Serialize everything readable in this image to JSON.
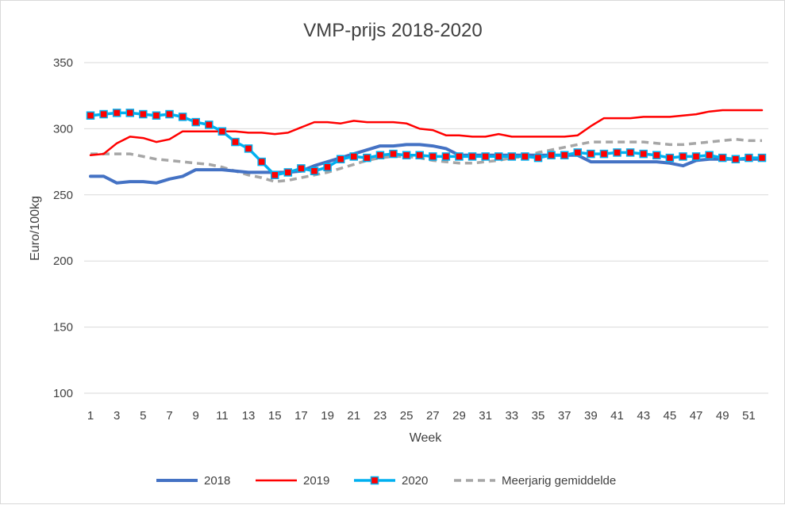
{
  "chart_data": {
    "type": "line",
    "title": "VMP-prijs 2018-2020",
    "xlabel": "Week",
    "ylabel": "Euro/100kg",
    "ylim": [
      100,
      350
    ],
    "yticks": [
      100,
      150,
      200,
      250,
      300,
      350
    ],
    "xticks": [
      1,
      3,
      5,
      7,
      9,
      11,
      13,
      15,
      17,
      19,
      21,
      23,
      25,
      27,
      29,
      31,
      33,
      35,
      37,
      39,
      41,
      43,
      45,
      47,
      49,
      51
    ],
    "xlim": [
      1,
      52
    ],
    "grid": true,
    "legend_position": "bottom",
    "series": [
      {
        "name": "2018",
        "color": "#4472c4",
        "style": "solid-thick",
        "x": [
          1,
          2,
          3,
          4,
          5,
          6,
          7,
          8,
          9,
          10,
          11,
          12,
          13,
          14,
          15,
          16,
          17,
          18,
          19,
          20,
          21,
          22,
          23,
          24,
          25,
          26,
          27,
          28,
          29,
          30,
          31,
          32,
          33,
          34,
          35,
          36,
          37,
          38,
          39,
          40,
          41,
          42,
          43,
          44,
          45,
          46,
          47,
          48,
          49,
          50,
          51,
          52
        ],
        "values": [
          264,
          264,
          259,
          260,
          260,
          259,
          262,
          264,
          269,
          269,
          269,
          268,
          267,
          267,
          267,
          267,
          268,
          272,
          275,
          278,
          281,
          284,
          287,
          287,
          288,
          288,
          287,
          285,
          280,
          280,
          280,
          280,
          280,
          280,
          280,
          280,
          280,
          280,
          275,
          275,
          275,
          275,
          275,
          275,
          274,
          272,
          276,
          277,
          277,
          277,
          277,
          277
        ]
      },
      {
        "name": "2019",
        "color": "#ff0000",
        "style": "solid",
        "x": [
          1,
          2,
          3,
          4,
          5,
          6,
          7,
          8,
          9,
          10,
          11,
          12,
          13,
          14,
          15,
          16,
          17,
          18,
          19,
          20,
          21,
          22,
          23,
          24,
          25,
          26,
          27,
          28,
          29,
          30,
          31,
          32,
          33,
          34,
          35,
          36,
          37,
          38,
          39,
          40,
          41,
          42,
          43,
          44,
          45,
          46,
          47,
          48,
          49,
          50,
          51,
          52
        ],
        "values": [
          280,
          281,
          289,
          294,
          293,
          290,
          292,
          298,
          298,
          298,
          298,
          298,
          297,
          297,
          296,
          297,
          301,
          305,
          305,
          304,
          306,
          305,
          305,
          305,
          304,
          300,
          299,
          295,
          295,
          294,
          294,
          296,
          294,
          294,
          294,
          294,
          294,
          295,
          302,
          308,
          308,
          308,
          309,
          309,
          309,
          310,
          311,
          313,
          314,
          314,
          314,
          314
        ]
      },
      {
        "name": "2020",
        "color": "#00b0f0",
        "marker_color": "#ff0000",
        "style": "solid-markers",
        "x": [
          1,
          2,
          3,
          4,
          5,
          6,
          7,
          8,
          9,
          10,
          11,
          12,
          13,
          14,
          15,
          16,
          17,
          18,
          19,
          20,
          21,
          22,
          23,
          24,
          25,
          26,
          27,
          28,
          29,
          30,
          31,
          32,
          33,
          34,
          35,
          36,
          37,
          38,
          39,
          40,
          41,
          42,
          43,
          44,
          45,
          46,
          47,
          48,
          49,
          50,
          51,
          52
        ],
        "values": [
          310,
          311,
          312,
          312,
          311,
          310,
          311,
          309,
          305,
          303,
          298,
          290,
          285,
          275,
          265,
          267,
          270,
          268,
          271,
          277,
          279,
          278,
          280,
          281,
          280,
          280,
          279,
          279,
          279,
          279,
          279,
          279,
          279,
          279,
          278,
          280,
          280,
          282,
          281,
          281,
          282,
          282,
          281,
          280,
          278,
          279,
          279,
          280,
          278,
          277,
          278,
          278
        ]
      },
      {
        "name": "Meerjarig gemiddelde",
        "color": "#a6a6a6",
        "style": "dashed",
        "x": [
          1,
          2,
          3,
          4,
          5,
          6,
          7,
          8,
          9,
          10,
          11,
          12,
          13,
          14,
          15,
          16,
          17,
          18,
          19,
          20,
          21,
          22,
          23,
          24,
          25,
          26,
          27,
          28,
          29,
          30,
          31,
          32,
          33,
          34,
          35,
          36,
          37,
          38,
          39,
          40,
          41,
          42,
          43,
          44,
          45,
          46,
          47,
          48,
          49,
          50,
          51,
          52
        ],
        "values": [
          281,
          281,
          281,
          281,
          279,
          277,
          276,
          275,
          274,
          273,
          271,
          268,
          265,
          263,
          260,
          261,
          263,
          265,
          267,
          270,
          273,
          276,
          278,
          279,
          279,
          278,
          276,
          275,
          274,
          274,
          275,
          276,
          278,
          279,
          282,
          284,
          286,
          288,
          290,
          290,
          290,
          290,
          290,
          289,
          288,
          288,
          289,
          290,
          291,
          292,
          291,
          291
        ]
      }
    ]
  }
}
